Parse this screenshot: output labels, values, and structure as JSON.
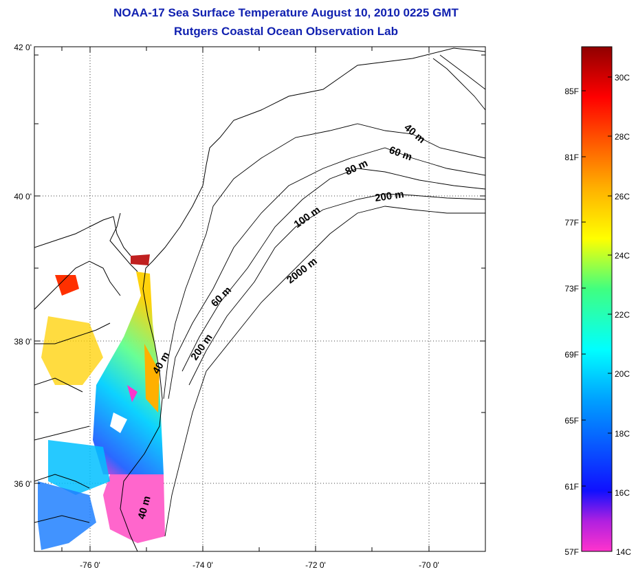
{
  "title_line1": "NOAA-17 Sea Surface Temperature August 10, 2010 0225 GMT",
  "title_line2": "Rutgers Coastal Ocean Observation Lab",
  "lat_ticks": [
    "42 0'",
    "40 0'",
    "38 0'",
    "36 0'"
  ],
  "lon_ticks": [
    "-76 0'",
    "-74 0'",
    "-72 0'",
    "-70 0'"
  ],
  "contours": [
    "40 m",
    "60 m",
    "80 m",
    "200 m",
    "100 m",
    "2000 m",
    "60 m",
    "200 m",
    "40 m",
    "40 m"
  ],
  "colorbar": {
    "f_labels": [
      "85F",
      "81F",
      "77F",
      "73F",
      "69F",
      "65F",
      "61F",
      "57F"
    ],
    "c_labels": [
      "30C",
      "28C",
      "26C",
      "24C",
      "22C",
      "20C",
      "18C",
      "16C",
      "14C"
    ]
  },
  "colors": {
    "title": "#1020b0",
    "land_line": "#000000"
  }
}
